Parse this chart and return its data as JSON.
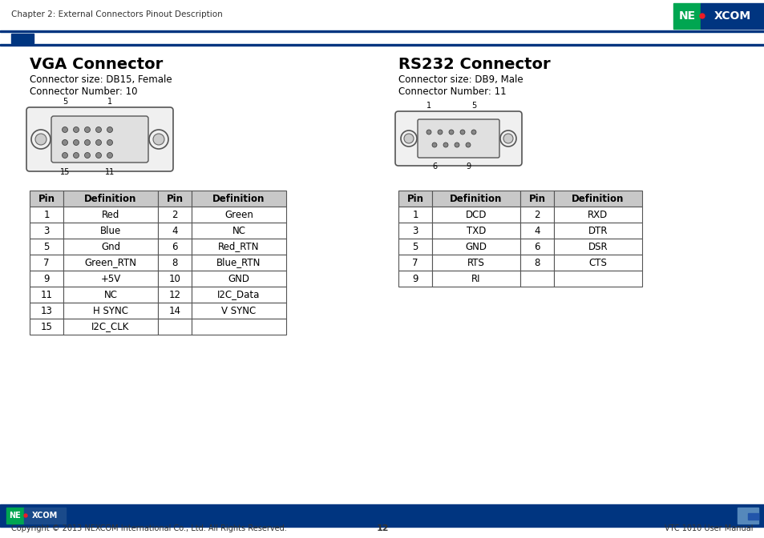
{
  "page_title": "Chapter 2: External Connectors Pinout Description",
  "bg_color": "#ffffff",
  "vga_title": "VGA Connector",
  "vga_subtitle1": "Connector size: DB15, Female",
  "vga_subtitle2": "Connector Number: 10",
  "rs232_title": "RS232 Connector",
  "rs232_subtitle1": "Connector size: DB9, Male",
  "rs232_subtitle2": "Connector Number: 11",
  "vga_table": {
    "headers": [
      "Pin",
      "Definition",
      "Pin",
      "Definition"
    ],
    "rows": [
      [
        "1",
        "Red",
        "2",
        "Green"
      ],
      [
        "3",
        "Blue",
        "4",
        "NC"
      ],
      [
        "5",
        "Gnd",
        "6",
        "Red_RTN"
      ],
      [
        "7",
        "Green_RTN",
        "8",
        "Blue_RTN"
      ],
      [
        "9",
        "+5V",
        "10",
        "GND"
      ],
      [
        "11",
        "NC",
        "12",
        "I2C_Data"
      ],
      [
        "13",
        "H SYNC",
        "14",
        "V SYNC"
      ],
      [
        "15",
        "I2C_CLK",
        "",
        ""
      ]
    ]
  },
  "rs232_table": {
    "headers": [
      "Pin",
      "Definition",
      "Pin",
      "Definition"
    ],
    "rows": [
      [
        "1",
        "DCD",
        "2",
        "RXD"
      ],
      [
        "3",
        "TXD",
        "4",
        "DTR"
      ],
      [
        "5",
        "GND",
        "6",
        "DSR"
      ],
      [
        "7",
        "RTS",
        "8",
        "CTS"
      ],
      [
        "9",
        "RI",
        "",
        ""
      ]
    ]
  },
  "footer_text_left": "Copyright © 2013 NEXCOM International Co., Ltd. All Rights Reserved.",
  "footer_text_center": "12",
  "footer_text_right": "VTC 1010 User Manual",
  "nexcom_green": "#00a651",
  "nexcom_blue": "#003580",
  "nexcom_red": "#ed1c24",
  "table_header_bg": "#c8c8c8",
  "table_border": "#555555",
  "header_line_color": "#003580",
  "accent_blue": "#003580"
}
